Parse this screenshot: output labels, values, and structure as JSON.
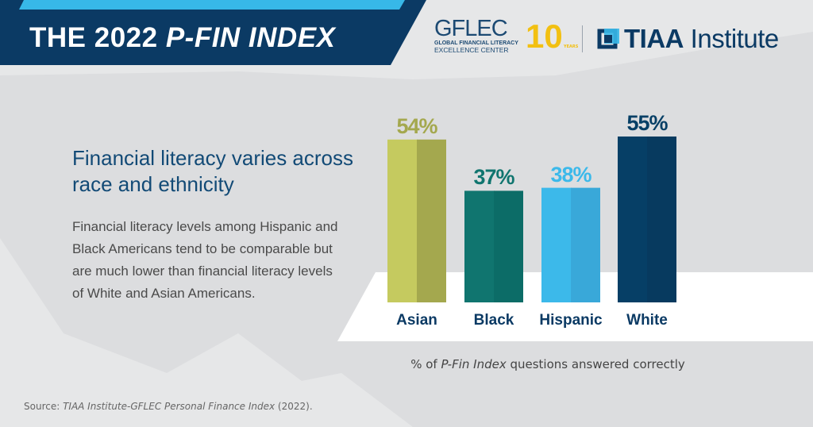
{
  "header": {
    "title_prefix": "THE 2022 ",
    "title_italic": "P-FIN INDEX",
    "gflec_logo": {
      "name": "GFLEC",
      "line1": "GLOBAL FINANCIAL LITERACY",
      "line2": "EXCELLENCE CENTER",
      "anniversary": "10",
      "years": "YEARS"
    },
    "tiaa_logo": {
      "bold": "TIAA",
      "rest": " Institute"
    },
    "colors": {
      "banner_dark": "#0b3a64",
      "banner_light": "#37b8e8"
    }
  },
  "text": {
    "heading": "Financial literacy varies across race and ethnicity",
    "body": "Financial literacy levels among Hispanic and Black Americans tend to be comparable but are much lower than financial literacy levels of White and Asian Americans."
  },
  "chart_data": {
    "type": "bar",
    "categories": [
      "Asian",
      "Black",
      "Hispanic",
      "White"
    ],
    "values": [
      54,
      37,
      38,
      55
    ],
    "data_labels": [
      "54%",
      "37%",
      "38%",
      "55%"
    ],
    "colors": [
      "#c5ca5f",
      "#10756f",
      "#3cb9ea",
      "#063f66"
    ],
    "shade_colors": [
      "#a4a84e",
      "#0c6c67",
      "#39a8d9",
      "#073a5f"
    ],
    "xlabel_prefix": "% of ",
    "xlabel_italic": "P-Fin Index",
    "xlabel_suffix": " questions answered correctly",
    "ylim": [
      0,
      60
    ],
    "grid": false
  },
  "source": {
    "prefix": "Source: ",
    "italic": "TIAA Institute-GFLEC Personal Finance Index",
    "suffix": " (2022)."
  }
}
